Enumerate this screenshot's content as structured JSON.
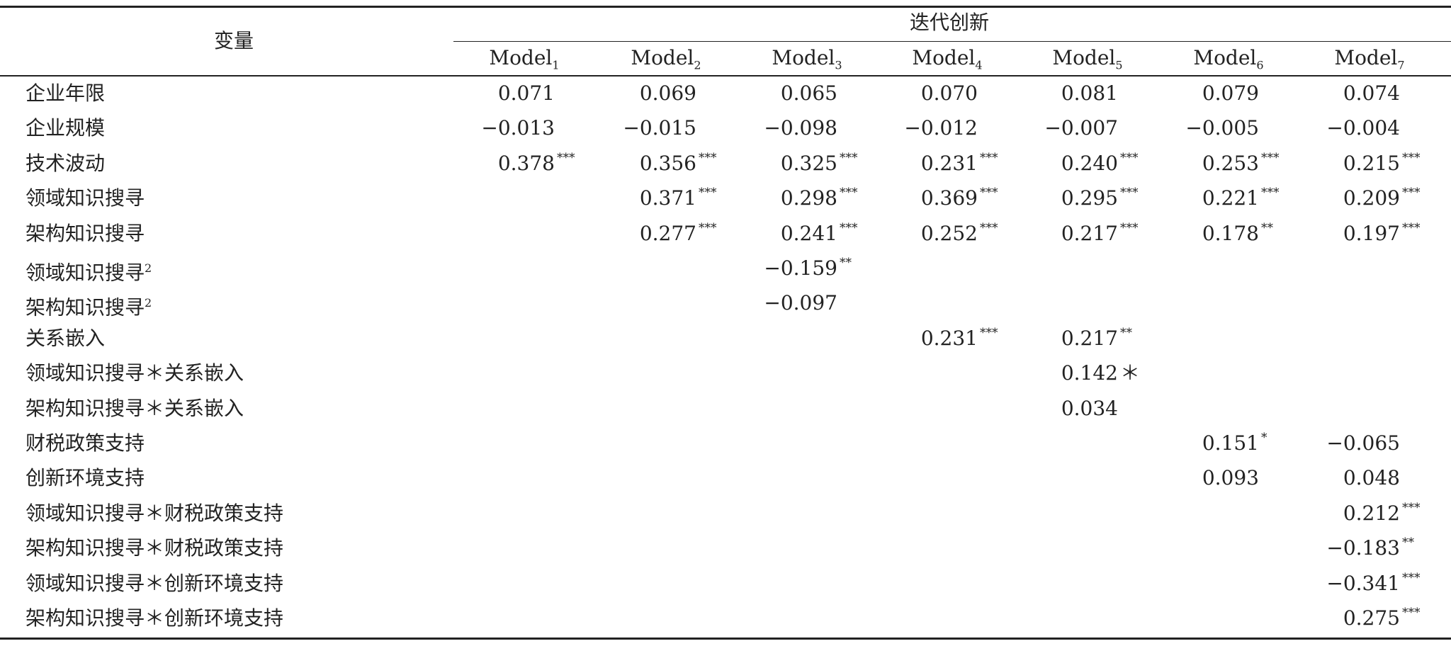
{
  "table": {
    "header": {
      "variable": "变量",
      "group": "迭代创新",
      "models": [
        {
          "name": "Model",
          "sub": "1"
        },
        {
          "name": "Model",
          "sub": "2"
        },
        {
          "name": "Model",
          "sub": "3"
        },
        {
          "name": "Model",
          "sub": "4"
        },
        {
          "name": "Model",
          "sub": "5"
        },
        {
          "name": "Model",
          "sub": "6"
        },
        {
          "name": "Model",
          "sub": "7"
        }
      ]
    },
    "rows": [
      {
        "label": "企业年限",
        "cells": [
          {
            "v": "0.071"
          },
          {
            "v": "0.069"
          },
          {
            "v": "0.065"
          },
          {
            "v": "0.070"
          },
          {
            "v": "0.081"
          },
          {
            "v": "0.079"
          },
          {
            "v": "0.074"
          }
        ]
      },
      {
        "label": "企业规模",
        "cells": [
          {
            "v": "−0.013"
          },
          {
            "v": "−0.015"
          },
          {
            "v": "−0.098"
          },
          {
            "v": "−0.012"
          },
          {
            "v": "−0.007"
          },
          {
            "v": "−0.005"
          },
          {
            "v": "−0.004"
          }
        ]
      },
      {
        "label": "技术波动",
        "cells": [
          {
            "v": "0.378",
            "s": "***"
          },
          {
            "v": "0.356",
            "s": "***"
          },
          {
            "v": "0.325",
            "s": "***"
          },
          {
            "v": "0.231",
            "s": "***"
          },
          {
            "v": "0.240",
            "s": "***"
          },
          {
            "v": "0.253",
            "s": "***"
          },
          {
            "v": "0.215",
            "s": "***"
          }
        ]
      },
      {
        "label": "领域知识搜寻",
        "cells": [
          null,
          {
            "v": "0.371",
            "s": "***"
          },
          {
            "v": "0.298",
            "s": "***"
          },
          {
            "v": "0.369",
            "s": "***"
          },
          {
            "v": "0.295",
            "s": "***"
          },
          {
            "v": "0.221",
            "s": "***"
          },
          {
            "v": "0.209",
            "s": "***"
          }
        ]
      },
      {
        "label": "架构知识搜寻",
        "cells": [
          null,
          {
            "v": "0.277",
            "s": "***"
          },
          {
            "v": "0.241",
            "s": "***"
          },
          {
            "v": "0.252",
            "s": "***"
          },
          {
            "v": "0.217",
            "s": "***"
          },
          {
            "v": "0.178",
            "s": "**"
          },
          {
            "v": "0.197",
            "s": "***"
          }
        ]
      },
      {
        "label": "领域知识搜寻",
        "sup": "2",
        "cells": [
          null,
          null,
          {
            "v": "−0.159",
            "s": "**"
          },
          null,
          null,
          null,
          null
        ]
      },
      {
        "label": "架构知识搜寻",
        "sup": "2",
        "cells": [
          null,
          null,
          {
            "v": "−0.097"
          },
          null,
          null,
          null,
          null
        ]
      },
      {
        "label": "关系嵌入",
        "cells": [
          null,
          null,
          null,
          {
            "v": "0.231",
            "s": "***"
          },
          {
            "v": "0.217",
            "s": "**"
          },
          null,
          null
        ]
      },
      {
        "label": "领域知识搜寻＊关系嵌入",
        "cells": [
          null,
          null,
          null,
          null,
          {
            "v": "0.142",
            "s": "＊",
            "inline": true
          },
          null,
          null
        ]
      },
      {
        "label": "架构知识搜寻＊关系嵌入",
        "cells": [
          null,
          null,
          null,
          null,
          {
            "v": "0.034"
          },
          null,
          null
        ]
      },
      {
        "label": "财税政策支持",
        "cells": [
          null,
          null,
          null,
          null,
          null,
          {
            "v": "0.151",
            "s": "*"
          },
          {
            "v": "−0.065"
          }
        ]
      },
      {
        "label": "创新环境支持",
        "cells": [
          null,
          null,
          null,
          null,
          null,
          {
            "v": "0.093"
          },
          {
            "v": "0.048"
          }
        ]
      },
      {
        "label": "领域知识搜寻＊财税政策支持",
        "cells": [
          null,
          null,
          null,
          null,
          null,
          null,
          {
            "v": "0.212",
            "s": "***"
          }
        ]
      },
      {
        "label": "架构知识搜寻＊财税政策支持",
        "cells": [
          null,
          null,
          null,
          null,
          null,
          null,
          {
            "v": "−0.183",
            "s": "**"
          }
        ]
      },
      {
        "label": "领域知识搜寻＊创新环境支持",
        "cells": [
          null,
          null,
          null,
          null,
          null,
          null,
          {
            "v": "−0.341",
            "s": "***"
          }
        ]
      },
      {
        "label": "架构知识搜寻＊创新环境支持",
        "cells": [
          null,
          null,
          null,
          null,
          null,
          null,
          {
            "v": "0.275",
            "s": "***"
          }
        ]
      }
    ]
  }
}
